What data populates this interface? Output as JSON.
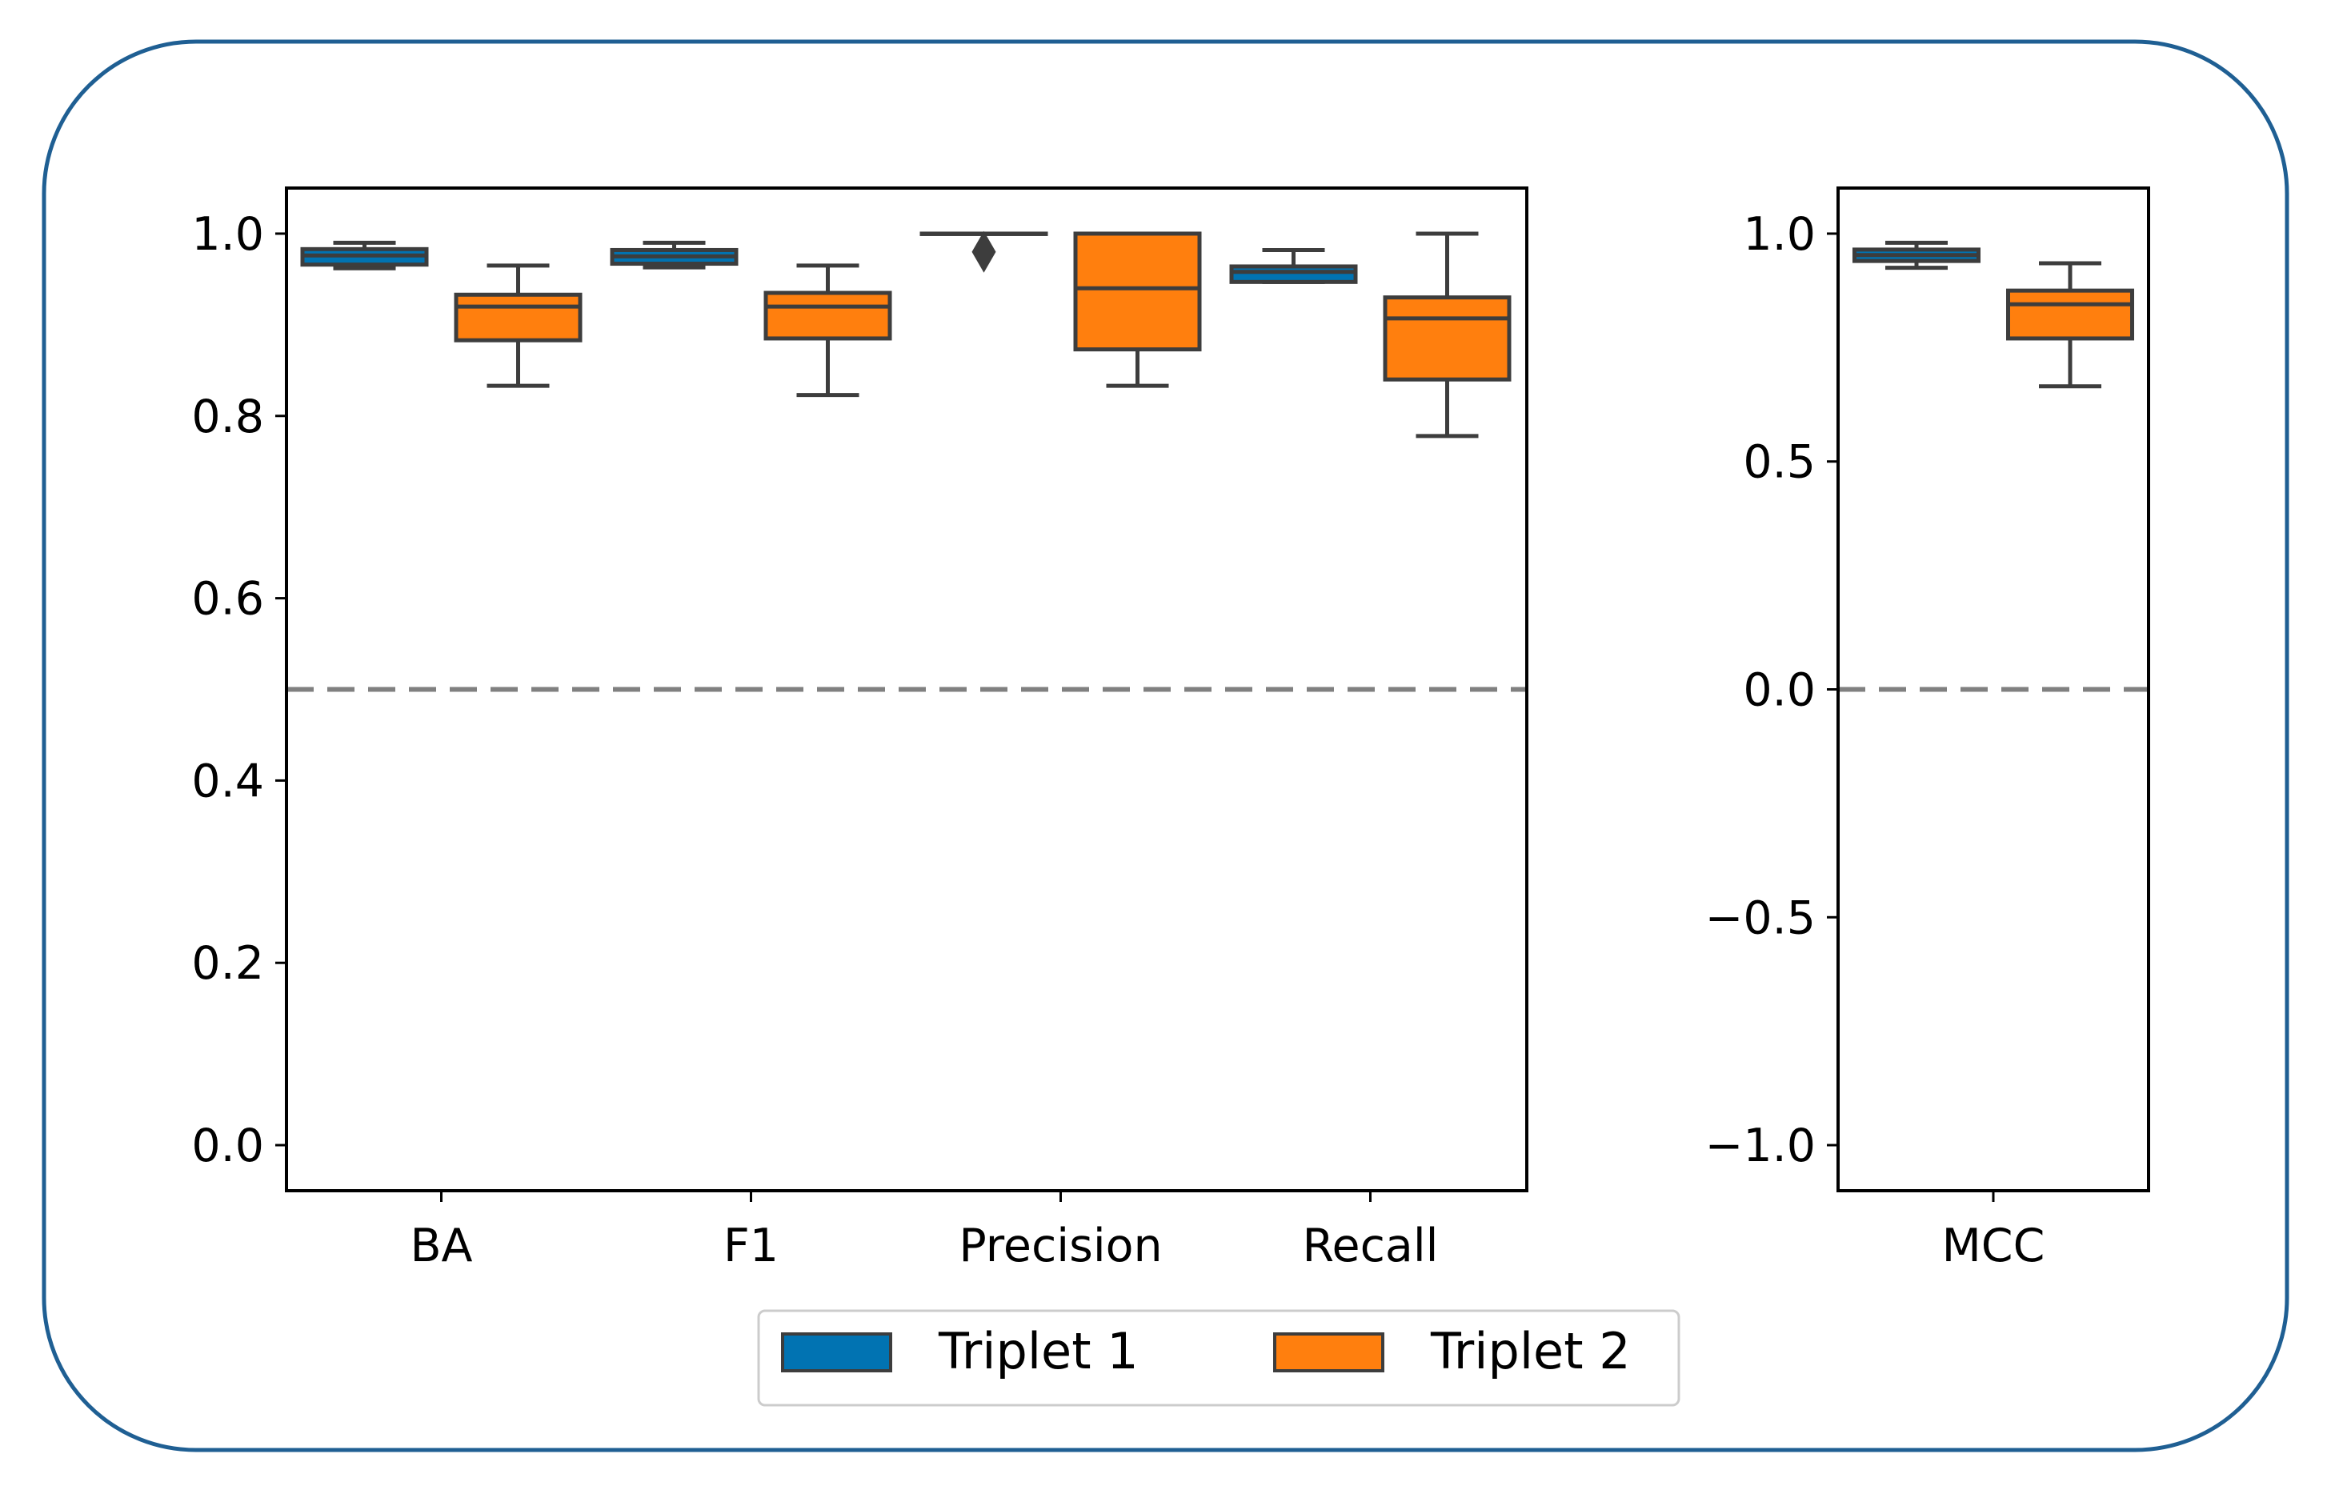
{
  "colors": {
    "frame": "#1f5f93",
    "box_edge": "#3d3d3d",
    "reference_line": "#808080",
    "axes": "#000000"
  },
  "chart_data": [
    {
      "type": "box",
      "categories": [
        "BA",
        "F1",
        "Precision",
        "Recall"
      ],
      "ylim": [
        -0.05,
        1.05
      ],
      "yticks": [
        "0.0",
        "0.2",
        "0.4",
        "0.6",
        "0.8",
        "1.0"
      ],
      "ytick_values": [
        0.0,
        0.2,
        0.4,
        0.6,
        0.8,
        1.0
      ],
      "reference_line": 0.5,
      "grid": false,
      "series": [
        {
          "name": "Triplet 1",
          "color": "#0173b2",
          "boxes": [
            {
              "category": "BA",
              "whisker_low": 0.962,
              "q1": 0.966,
              "median": 0.976,
              "q3": 0.983,
              "whisker_high": 0.99,
              "outliers": []
            },
            {
              "category": "F1",
              "whisker_low": 0.963,
              "q1": 0.967,
              "median": 0.975,
              "q3": 0.982,
              "whisker_high": 0.99,
              "outliers": []
            },
            {
              "category": "Precision",
              "whisker_low": 1.0,
              "q1": 1.0,
              "median": 1.0,
              "q3": 1.0,
              "whisker_high": 1.0,
              "outliers": [
                0.98
              ]
            },
            {
              "category": "Recall",
              "whisker_low": 0.947,
              "q1": 0.947,
              "median": 0.958,
              "q3": 0.964,
              "whisker_high": 0.982,
              "outliers": []
            }
          ]
        },
        {
          "name": "Triplet 2",
          "color": "#ff7f0e",
          "boxes": [
            {
              "category": "BA",
              "whisker_low": 0.833,
              "q1": 0.883,
              "median": 0.92,
              "q3": 0.933,
              "whisker_high": 0.965,
              "outliers": []
            },
            {
              "category": "F1",
              "whisker_low": 0.823,
              "q1": 0.885,
              "median": 0.92,
              "q3": 0.935,
              "whisker_high": 0.965,
              "outliers": []
            },
            {
              "category": "Precision",
              "whisker_low": 0.833,
              "q1": 0.873,
              "median": 0.94,
              "q3": 1.0,
              "whisker_high": 1.0,
              "outliers": []
            },
            {
              "category": "Recall",
              "whisker_low": 0.778,
              "q1": 0.84,
              "median": 0.907,
              "q3": 0.93,
              "whisker_high": 1.0,
              "outliers": []
            }
          ]
        }
      ]
    },
    {
      "type": "box",
      "categories": [
        "MCC"
      ],
      "ylim": [
        -1.1,
        1.1
      ],
      "yticks": [
        "−1.0",
        "−0.5",
        "0.0",
        "0.5",
        "1.0"
      ],
      "ytick_values": [
        -1.0,
        -0.5,
        0.0,
        0.5,
        1.0
      ],
      "reference_line": 0.0,
      "grid": false,
      "series": [
        {
          "name": "Triplet 1",
          "color": "#0173b2",
          "boxes": [
            {
              "category": "MCC",
              "whisker_low": 0.925,
              "q1": 0.94,
              "median": 0.953,
              "q3": 0.965,
              "whisker_high": 0.98,
              "outliers": []
            }
          ]
        },
        {
          "name": "Triplet 2",
          "color": "#ff7f0e",
          "boxes": [
            {
              "category": "MCC",
              "whisker_low": 0.665,
              "q1": 0.77,
              "median": 0.845,
              "q3": 0.875,
              "whisker_high": 0.935,
              "outliers": []
            }
          ]
        }
      ]
    }
  ],
  "legend": {
    "placement": "bottom-center",
    "items": [
      {
        "label": "Triplet 1",
        "color": "#0173b2"
      },
      {
        "label": "Triplet 2",
        "color": "#ff7f0e"
      }
    ]
  }
}
